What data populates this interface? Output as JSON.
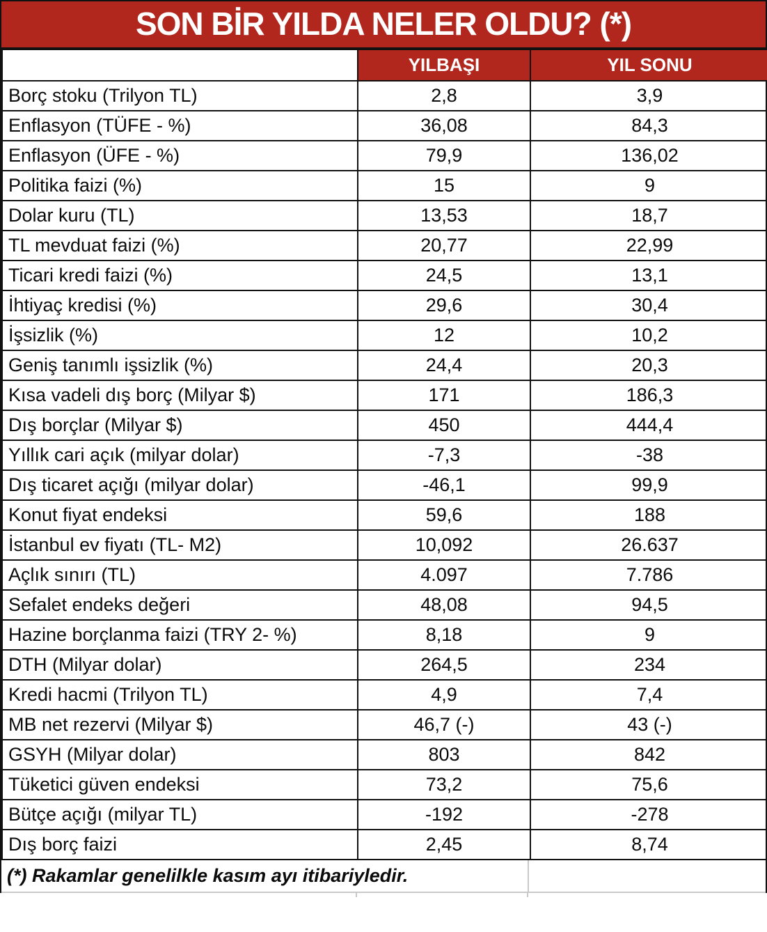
{
  "chart_data": {
    "type": "table",
    "title": "SON BİR YILDA NELER OLDU? (*)",
    "columns": [
      "",
      "YILBAŞI",
      "YIL SONU"
    ],
    "rows": [
      [
        "Borç stoku (Trilyon TL)",
        "2,8",
        "3,9"
      ],
      [
        "Enflasyon (TÜFE - %)",
        "36,08",
        "84,3"
      ],
      [
        "Enflasyon (ÜFE - %)",
        "79,9",
        "136,02"
      ],
      [
        "Politika faizi (%)",
        "15",
        "9"
      ],
      [
        "Dolar kuru (TL)",
        "13,53",
        "18,7"
      ],
      [
        "TL mevduat faizi (%)",
        "20,77",
        "22,99"
      ],
      [
        "Ticari kredi faizi (%)",
        "24,5",
        "13,1"
      ],
      [
        "İhtiyaç kredisi (%)",
        "29,6",
        "30,4"
      ],
      [
        "İşsizlik (%)",
        "12",
        "10,2"
      ],
      [
        "Geniş tanımlı işsizlik (%)",
        "24,4",
        "20,3"
      ],
      [
        "Kısa vadeli dış borç (Milyar $)",
        "171",
        "186,3"
      ],
      [
        "Dış borçlar (Milyar $)",
        "450",
        "444,4"
      ],
      [
        "Yıllık cari açık (milyar dolar)",
        "-7,3",
        "-38"
      ],
      [
        "Dış ticaret açığı (milyar dolar)",
        "-46,1",
        "99,9"
      ],
      [
        "Konut fiyat endeksi",
        "59,6",
        "188"
      ],
      [
        "İstanbul ev fiyatı (TL- M2)",
        "10,092",
        "26.637"
      ],
      [
        "Açlık sınırı (TL)",
        "4.097",
        "7.786"
      ],
      [
        "Sefalet endeks değeri",
        "48,08",
        "94,5"
      ],
      [
        "Hazine borçlanma faizi (TRY 2- %)",
        "8,18",
        "9"
      ],
      [
        "DTH (Milyar dolar)",
        "264,5",
        "234"
      ],
      [
        "Kredi hacmi (Trilyon TL)",
        "4,9",
        "7,4"
      ],
      [
        "MB net rezervi (Milyar $)",
        "46,7 (-)",
        "43 (-)"
      ],
      [
        "GSYH (Milyar dolar)",
        "803",
        "842"
      ],
      [
        "Tüketici güven endeksi",
        "73,2",
        "75,6"
      ],
      [
        "Bütçe açığı (milyar TL)",
        "-192",
        "-278"
      ],
      [
        "Dış borç faizi",
        "2,45",
        "8,74"
      ]
    ],
    "footnote": "(*) Rakamlar genelilkle kasım ayı itibariyledir.",
    "layout": {
      "header_position": "top",
      "value_alignment": "center",
      "label_alignment": "left",
      "grid": "all-borders"
    }
  },
  "colors": {
    "accent_red": "#B1261D",
    "header_text": "#FFFFFF",
    "border": "#111111",
    "grid_gray": "#C9C9C9"
  }
}
